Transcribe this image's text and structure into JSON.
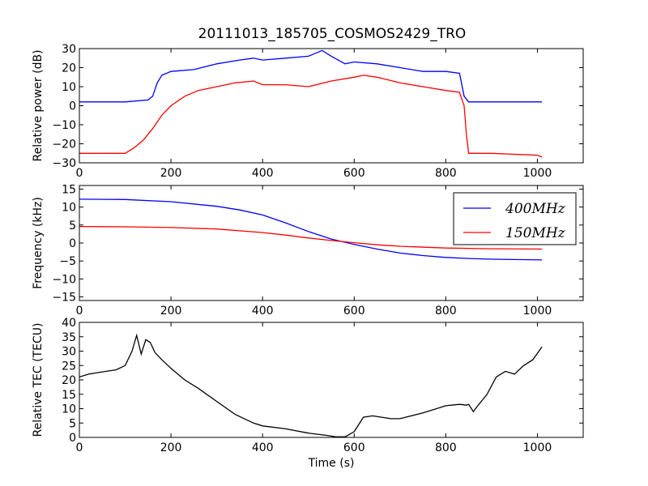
{
  "figure": {
    "title": "20111013_185705_COSMOS2429_TRO",
    "xlabel": "Time (s)"
  },
  "colors": {
    "blue": "#0000ff",
    "red": "#ff0000",
    "black": "#000000"
  },
  "chart_data": [
    {
      "type": "line",
      "ylabel": "Relative power (dB)",
      "xlim": [
        0,
        1100
      ],
      "ylim": [
        -30,
        30
      ],
      "xticks": [
        "0",
        "200",
        "400",
        "600",
        "800",
        "1000"
      ],
      "yticks": [
        "−30",
        "−20",
        "−10",
        "0",
        "10",
        "20",
        "30"
      ],
      "grid": false,
      "legend": "none",
      "series": [
        {
          "color": "#0000ff",
          "x": [
            0,
            100,
            150,
            160,
            170,
            180,
            200,
            250,
            300,
            350,
            380,
            400,
            450,
            500,
            520,
            530,
            550,
            580,
            600,
            650,
            700,
            750,
            800,
            830,
            840,
            850,
            900,
            1000,
            1010
          ],
          "y": [
            2,
            2,
            3,
            5,
            12,
            16,
            18,
            19,
            22,
            24,
            25,
            24,
            25,
            26,
            28,
            29,
            26,
            22,
            23,
            22,
            20,
            18,
            18,
            17,
            5,
            2,
            2,
            2,
            2
          ]
        },
        {
          "color": "#ff0000",
          "x": [
            0,
            100,
            120,
            140,
            160,
            180,
            200,
            230,
            260,
            300,
            340,
            380,
            400,
            450,
            500,
            550,
            600,
            620,
            650,
            700,
            750,
            800,
            830,
            840,
            845,
            850,
            900,
            1000,
            1010
          ],
          "y": [
            -25,
            -25,
            -22,
            -18,
            -12,
            -5,
            0,
            5,
            8,
            10,
            12,
            13,
            11,
            11,
            10,
            13,
            15,
            16,
            15,
            12,
            10,
            8,
            7,
            0,
            -15,
            -25,
            -25,
            -26,
            -27
          ]
        }
      ]
    },
    {
      "type": "line",
      "ylabel": "Frequency (kHz)",
      "xlim": [
        0,
        1100
      ],
      "ylim": [
        -16,
        16
      ],
      "xticks": [
        "0",
        "200",
        "400",
        "600",
        "800",
        "1000"
      ],
      "yticks": [
        "−15",
        "−10",
        "−5",
        "0",
        "5",
        "10",
        "15"
      ],
      "grid": false,
      "legend": "top-right",
      "series": [
        {
          "name": "400MHz",
          "color": "#0000ff",
          "x": [
            0,
            100,
            200,
            300,
            350,
            400,
            450,
            500,
            550,
            600,
            650,
            700,
            750,
            800,
            850,
            900,
            950,
            1010
          ],
          "y": [
            12.2,
            12.1,
            11.5,
            10.2,
            9.2,
            7.8,
            5.6,
            3.2,
            1.1,
            -0.4,
            -1.7,
            -2.8,
            -3.5,
            -4.0,
            -4.3,
            -4.5,
            -4.6,
            -4.7
          ]
        },
        {
          "name": "150MHz",
          "color": "#ff0000",
          "x": [
            0,
            100,
            200,
            300,
            400,
            450,
            500,
            550,
            600,
            650,
            700,
            800,
            900,
            1010
          ],
          "y": [
            4.6,
            4.5,
            4.3,
            3.9,
            2.9,
            2.2,
            1.4,
            0.7,
            0.1,
            -0.5,
            -0.9,
            -1.4,
            -1.6,
            -1.7
          ]
        }
      ]
    },
    {
      "type": "line",
      "ylabel": "Relative TEC (TECU)",
      "xlim": [
        0,
        1100
      ],
      "ylim": [
        0,
        40
      ],
      "xticks": [
        "0",
        "200",
        "400",
        "600",
        "800",
        "1000"
      ],
      "yticks": [
        "0",
        "5",
        "10",
        "15",
        "20",
        "25",
        "30",
        "35",
        "40"
      ],
      "grid": false,
      "legend": "none",
      "series": [
        {
          "color": "#000000",
          "x": [
            0,
            20,
            50,
            80,
            100,
            115,
            125,
            135,
            145,
            155,
            165,
            180,
            200,
            230,
            260,
            300,
            340,
            380,
            400,
            450,
            500,
            540,
            560,
            580,
            600,
            620,
            640,
            660,
            680,
            700,
            750,
            800,
            830,
            845,
            850,
            860,
            870,
            890,
            910,
            930,
            950,
            970,
            990,
            1010
          ],
          "y": [
            21,
            22,
            22.8,
            23.5,
            25,
            30,
            35.5,
            29,
            34,
            33,
            29.5,
            27,
            24,
            20,
            17,
            12.5,
            8,
            5,
            4,
            3,
            1.5,
            0.7,
            0.2,
            0.2,
            2,
            7,
            7.5,
            7,
            6.5,
            6.5,
            8.5,
            11,
            11.5,
            11.2,
            11.5,
            9,
            11,
            15,
            21,
            23,
            22,
            25,
            27,
            31.5
          ]
        }
      ]
    }
  ]
}
